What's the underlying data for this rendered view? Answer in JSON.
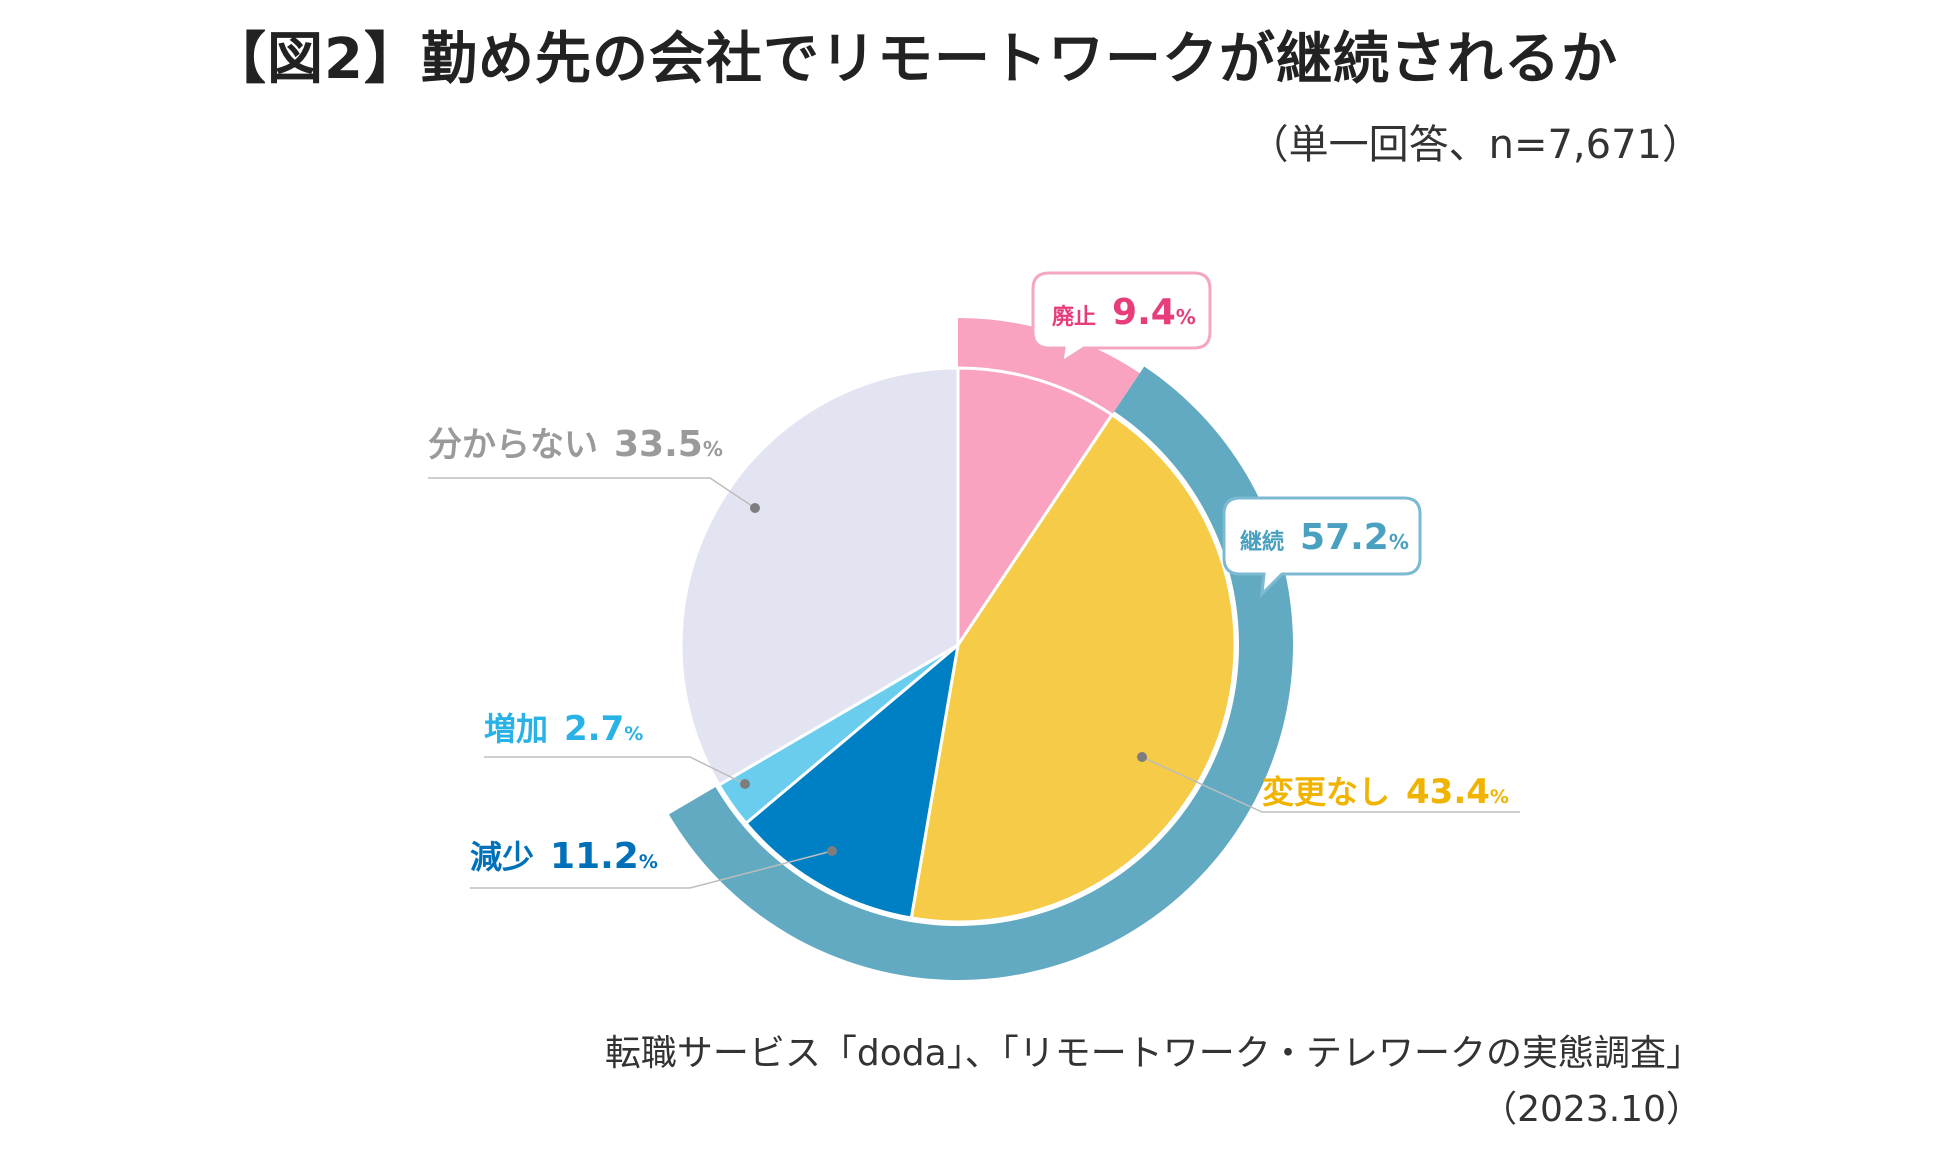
{
  "title": "【図2】勤め先の会社でリモートワークが継続されるか",
  "subtitle": "（単一回答、n=7,671）",
  "source": {
    "line1": "転職サービス「doda」、「リモートワーク・テレワークの実態調査」",
    "line2": "（2023.10）"
  },
  "chart_data": {
    "type": "pie",
    "title": "勤め先の会社でリモートワークが継続されるか",
    "unit": "%",
    "slices": [
      {
        "name": "廃止",
        "value": 9.4,
        "color": "#f9a3c0",
        "label_color": "#e83d7d"
      },
      {
        "name": "変更なし",
        "value": 43.4,
        "color": "#f5cb48",
        "label_color": "#f0b400"
      },
      {
        "name": "減少",
        "value": 11.2,
        "color": "#0080c4",
        "label_color": "#0070b8"
      },
      {
        "name": "増加",
        "value": 2.7,
        "color": "#6bcdee",
        "label_color": "#29b2e6"
      },
      {
        "name": "分からない",
        "value": 33.5,
        "color": "#e3e4f2",
        "label_color": "#9a9a9a"
      }
    ],
    "groups": [
      {
        "name": "継続",
        "value": 57.2,
        "color": "#62aac2",
        "label_color": "#4aa0c0",
        "members": [
          "変更なし",
          "減少",
          "増加"
        ]
      }
    ],
    "percent_sign": "%"
  }
}
